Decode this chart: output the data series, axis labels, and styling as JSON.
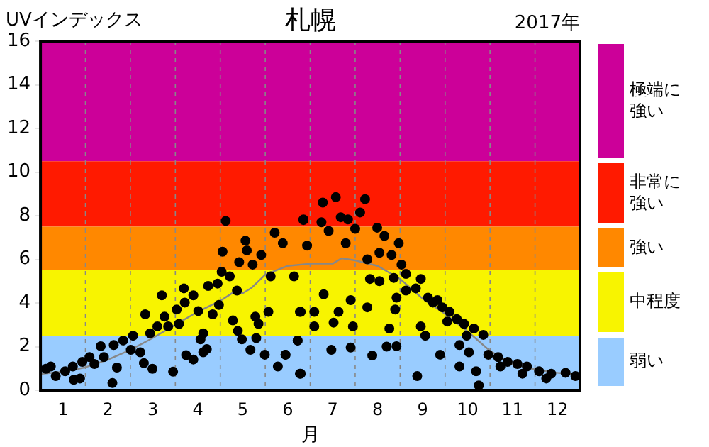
{
  "chart_data": {
    "type": "scatter",
    "title": "札幌",
    "ylabel": "UVインデックス",
    "xlabel": "月",
    "annotations": [
      "2017年"
    ],
    "xlim": [
      0.5,
      12.5
    ],
    "xticks": [
      1,
      2,
      3,
      4,
      5,
      6,
      7,
      8,
      9,
      10,
      11,
      12
    ],
    "ylim": [
      0,
      16
    ],
    "yticks": [
      0,
      2,
      4,
      6,
      8,
      10,
      12,
      14,
      16
    ],
    "grid": false,
    "legend": "right",
    "marker": "circle",
    "bands": [
      {
        "axis": "y",
        "from": 10.5,
        "to": 16,
        "label": "極端に強い",
        "color": "#cc0099"
      },
      {
        "axis": "y",
        "from": 7.5,
        "to": 10.5,
        "label": "非常に強い",
        "color": "#ff1a00"
      },
      {
        "axis": "y",
        "from": 5.5,
        "to": 7.5,
        "label": "強い",
        "color": "#ff8800"
      },
      {
        "axis": "y",
        "from": 2.5,
        "to": 5.5,
        "label": "中程度",
        "color": "#f8f400"
      },
      {
        "axis": "y",
        "from": 0,
        "to": 2.5,
        "label": "弱い",
        "color": "#99ccff"
      }
    ],
    "ref_lines": [
      {
        "axis": "x",
        "value": 1.5,
        "color": "#888888",
        "line_style": "dashed"
      },
      {
        "axis": "x",
        "value": 2.5,
        "color": "#888888",
        "line_style": "dashed"
      },
      {
        "axis": "x",
        "value": 3.5,
        "color": "#888888",
        "line_style": "dashed"
      },
      {
        "axis": "x",
        "value": 4.5,
        "color": "#888888",
        "line_style": "dashed"
      },
      {
        "axis": "x",
        "value": 5.5,
        "color": "#888888",
        "line_style": "dashed"
      },
      {
        "axis": "x",
        "value": 6.5,
        "color": "#888888",
        "line_style": "dashed"
      },
      {
        "axis": "x",
        "value": 7.5,
        "color": "#888888",
        "line_style": "dashed"
      },
      {
        "axis": "x",
        "value": 8.5,
        "color": "#888888",
        "line_style": "dashed"
      },
      {
        "axis": "x",
        "value": 9.5,
        "color": "#888888",
        "line_style": "dashed"
      },
      {
        "axis": "x",
        "value": 10.5,
        "color": "#888888",
        "line_style": "dashed"
      },
      {
        "axis": "x",
        "value": 11.5,
        "color": "#888888",
        "line_style": "dashed"
      }
    ],
    "series": [
      {
        "color": "#000000",
        "x": [
          0.62,
          0.73,
          0.84,
          1.05,
          1.22,
          1.24,
          1.38,
          1.43,
          1.59,
          1.7,
          1.84,
          1.91,
          2.1,
          2.2,
          2.13,
          2.34,
          2.51,
          2.56,
          2.72,
          2.8,
          2.83,
          2.94,
          2.99,
          3.1,
          3.2,
          3.26,
          3.34,
          3.45,
          3.53,
          3.58,
          3.69,
          3.71,
          3.74,
          3.9,
          3.9,
          4.01,
          4.06,
          4.12,
          4.12,
          4.2,
          4.23,
          4.33,
          4.44,
          4.47,
          4.55,
          4.62,
          4.53,
          4.71,
          4.78,
          4.87,
          4.89,
          4.98,
          4.92,
          5.06,
          5.09,
          5.17,
          5.22,
          5.28,
          5.3,
          5.35,
          5.41,
          5.49,
          5.57,
          5.62,
          5.71,
          5.78,
          5.89,
          5.95,
          6.14,
          6.22,
          6.27,
          6.29,
          6.35,
          6.43,
          6.35,
          6.78,
          7.07,
          7.72,
          7.61,
          7.18,
          7.34,
          6.75,
          6.91,
          7.5,
          7.99,
          7.29,
          8.15,
          8.47,
          7.77,
          8.04,
          8.31,
          8.53,
          8.63,
          8.85,
          8.96,
          9.12,
          9.33,
          9.44,
          9.6,
          9.76,
          9.92,
          10.14,
          10.35,
          10.46,
          10.68,
          10.89,
          11.11,
          11.32,
          11.59,
          11.86,
          12.18,
          12.4,
          7.83,
          8.04,
          8.36,
          6.8,
          7.4,
          6.27,
          6.59,
          7.13,
          7.77,
          8.39,
          6.59,
          7.02,
          7.45,
          8.26,
          8.96,
          9.06,
          6.22,
          6.97,
          7.4,
          8.2,
          8.42,
          7.88,
          9.39,
          9.82,
          9.82,
          10.03,
          10.19,
          10.25,
          8.88,
          6.29,
          5.95,
          8.42,
          8.63,
          9.23,
          9.55,
          9.98,
          10.73,
          11.22,
          11.75
        ],
        "values": [
          0.98,
          1.09,
          0.65,
          0.87,
          1.09,
          0.48,
          0.54,
          1.3,
          1.52,
          1.2,
          2.02,
          1.52,
          0.33,
          1.04,
          2.07,
          2.28,
          1.85,
          2.5,
          1.74,
          1.24,
          3.48,
          2.61,
          0.98,
          2.93,
          4.35,
          3.37,
          2.93,
          0.85,
          3.7,
          3.04,
          4.67,
          4.02,
          1.61,
          1.41,
          4.35,
          3.63,
          2.33,
          2.61,
          1.74,
          1.89,
          4.78,
          3.48,
          4.89,
          3.91,
          6.35,
          7.76,
          5.43,
          5.22,
          3.2,
          4.57,
          2.72,
          2.33,
          5.87,
          6.85,
          6.41,
          1.85,
          5.76,
          3.37,
          2.39,
          3.04,
          6.2,
          1.63,
          3.59,
          5.22,
          7.22,
          1.09,
          6.74,
          1.63,
          5.22,
          2.28,
          0.76,
          3.59,
          7.83,
          6.63,
          7.8,
          8.6,
          8.85,
          8.76,
          8.15,
          7.93,
          7.83,
          7.7,
          7.3,
          7.4,
          7.45,
          6.74,
          7.07,
          6.74,
          6.0,
          6.3,
          6.2,
          5.76,
          5.33,
          4.67,
          5.1,
          4.24,
          4.13,
          3.8,
          3.59,
          3.26,
          3.04,
          2.83,
          2.54,
          1.63,
          1.52,
          1.3,
          1.2,
          1.09,
          0.87,
          0.76,
          0.8,
          0.65,
          5.1,
          5.0,
          5.15,
          4.4,
          4.13,
          3.59,
          3.59,
          3.59,
          3.8,
          3.7,
          2.93,
          3.1,
          2.93,
          2.83,
          2.93,
          2.5,
          2.28,
          1.85,
          1.96,
          2.0,
          2.02,
          1.59,
          1.63,
          2.07,
          1.09,
          1.74,
          0.87,
          0.22,
          0.65,
          0.76,
          1.63,
          4.24,
          4.57,
          4.02,
          3.15,
          2.5,
          1.09,
          0.76,
          0.54
        ]
      },
      {
        "type": "line",
        "color": "#888888",
        "marker": "none",
        "x": [
          0.5,
          1,
          1.5,
          2,
          2.5,
          3,
          3.5,
          4,
          4.5,
          4.8,
          5,
          5.2,
          5.5,
          6,
          6.5,
          7,
          7.2,
          7.5,
          8,
          8.5,
          9,
          9.5,
          10,
          10.5,
          11,
          11.5,
          12,
          12.5
        ],
        "values": [
          0.75,
          0.85,
          1.05,
          1.4,
          1.85,
          2.4,
          3.0,
          3.6,
          4.1,
          4.5,
          4.45,
          4.7,
          5.3,
          5.7,
          5.8,
          5.8,
          6.05,
          5.95,
          5.7,
          5.1,
          4.2,
          3.5,
          2.7,
          1.8,
          1.2,
          0.95,
          0.8,
          0.7
        ]
      }
    ]
  }
}
